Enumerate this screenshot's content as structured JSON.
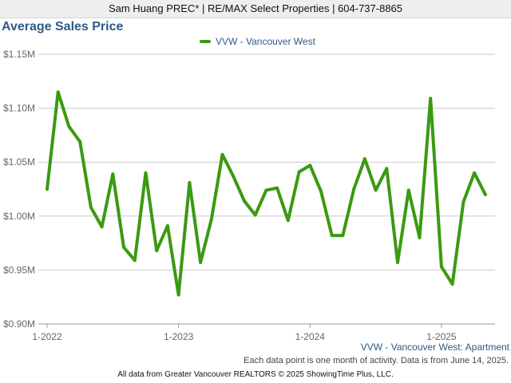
{
  "header": {
    "text": "Sam Huang PREC* | RE/MAX Select Properties | 604-737-8865"
  },
  "colors": {
    "series": "#3a9a12",
    "title": "#2c5a86",
    "grid": "#cccccc"
  },
  "chart_data": {
    "type": "line",
    "title": "Average Sales Price",
    "xlabel": "",
    "ylabel": "",
    "ylim": [
      0.9,
      1.15
    ],
    "y_ticks": [
      0.9,
      0.95,
      1.0,
      1.05,
      1.1,
      1.15
    ],
    "y_tick_labels": [
      "$0.90M",
      "$0.95M",
      "$1.00M",
      "$1.05M",
      "$1.10M",
      "$1.15M"
    ],
    "x_ticks": [
      {
        "label": "1-2022",
        "month_index": 0
      },
      {
        "label": "1-2023",
        "month_index": 12
      },
      {
        "label": "1-2024",
        "month_index": 24
      },
      {
        "label": "1-2025",
        "month_index": 36
      }
    ],
    "legend_position": "top",
    "grid": true,
    "series": [
      {
        "name": "VVW - Vancouver West",
        "values": [
          1.025,
          1.115,
          1.083,
          1.069,
          1.008,
          0.99,
          1.039,
          0.971,
          0.959,
          1.04,
          0.968,
          0.991,
          0.927,
          1.031,
          0.957,
          0.997,
          1.057,
          1.037,
          1.014,
          1.001,
          1.024,
          1.026,
          0.996,
          1.041,
          1.047,
          1.023,
          0.982,
          0.982,
          1.025,
          1.053,
          1.024,
          1.044,
          0.957,
          1.024,
          0.98,
          1.109,
          0.953,
          0.937,
          1.013,
          1.04,
          1.02
        ]
      }
    ]
  },
  "series_caption": "VVW - Vancouver West: Apartment",
  "note": "Each data point is one month of activity. Data is from June 14, 2025.",
  "footer": "All data from Greater Vancouver REALTORS © 2025 ShowingTime Plus, LLC."
}
